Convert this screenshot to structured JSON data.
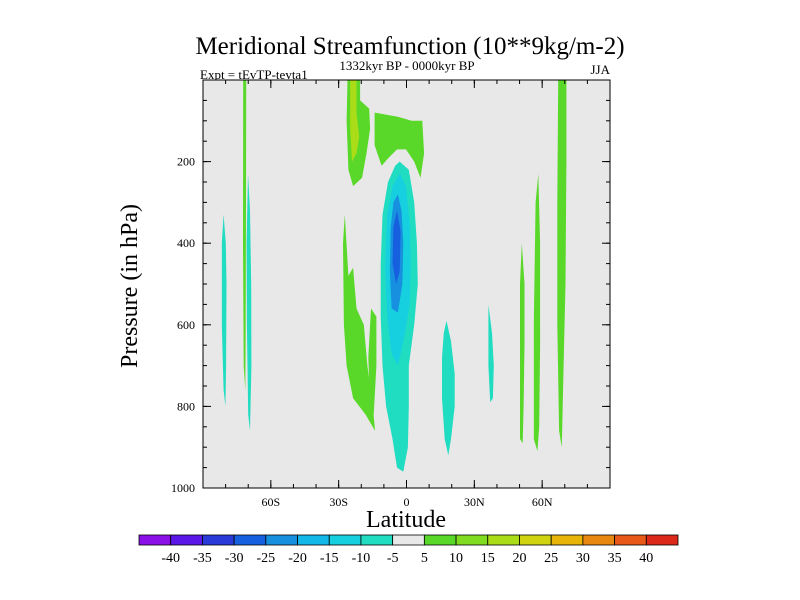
{
  "chart_data": {
    "type": "contour",
    "title": "Meridional Streamfunction (10**9kg/m-2)",
    "subtitle_left": "Expt = tEvTP-tevta1",
    "subtitle_center": "1332kyr BP - 0000kyr BP",
    "subtitle_right": "JJA",
    "xlabel": "Latitude",
    "ylabel": "Pressure (in hPa)",
    "x_range": [
      -90,
      90
    ],
    "y_range": [
      0,
      1000
    ],
    "y_inverted": true,
    "x_ticks": [
      {
        "value": -60,
        "label": "60S"
      },
      {
        "value": -30,
        "label": "30S"
      },
      {
        "value": 0,
        "label": "0"
      },
      {
        "value": 30,
        "label": "30N"
      },
      {
        "value": 60,
        "label": "60N"
      }
    ],
    "y_ticks": [
      {
        "value": 200,
        "label": "200"
      },
      {
        "value": 400,
        "label": "400"
      },
      {
        "value": 600,
        "label": "600"
      },
      {
        "value": 800,
        "label": "800"
      },
      {
        "value": 1000,
        "label": "1000"
      }
    ],
    "background_color": "#e8e8e8",
    "colorbar": {
      "labels": [
        "-40",
        "-35",
        "-30",
        "-25",
        "-20",
        "-15",
        "-10",
        "-5",
        "5",
        "10",
        "15",
        "20",
        "25",
        "30",
        "35",
        "40"
      ],
      "colors": [
        "#8b10e8",
        "#5b17e8",
        "#2a3ad8",
        "#1660e0",
        "#1890e0",
        "#14b8e8",
        "#16d0e0",
        "#20dcc0",
        "#e8e8e8",
        "#5ad82a",
        "#80dc20",
        "#aadc18",
        "#d0d410",
        "#e8b408",
        "#e88810",
        "#e85818",
        "#dc2818"
      ]
    },
    "regions": [
      {
        "color": "#20dcc0",
        "points": [
          [
            -80.9,
            330
          ],
          [
            -79.9,
            400
          ],
          [
            -79.6,
            500
          ],
          [
            -79.8,
            700
          ],
          [
            -80.1,
            800
          ],
          [
            -80.9,
            760
          ],
          [
            -81.7,
            600
          ],
          [
            -81.7,
            400
          ]
        ]
      },
      {
        "color": "#5ad82a",
        "points": [
          [
            -72.2,
            0
          ],
          [
            -70.9,
            0
          ],
          [
            -71,
            300
          ],
          [
            -71.1,
            600
          ],
          [
            -71.3,
            760
          ],
          [
            -72,
            700
          ],
          [
            -72.3,
            400
          ]
        ]
      },
      {
        "color": "#20dcc0",
        "points": [
          [
            -70.1,
            230
          ],
          [
            -69.2,
            320
          ],
          [
            -68.7,
            500
          ],
          [
            -68.6,
            700
          ],
          [
            -69.2,
            860
          ],
          [
            -70,
            820
          ],
          [
            -70.6,
            600
          ],
          [
            -70.7,
            400
          ]
        ]
      },
      {
        "color": "#5ad82a",
        "points": [
          [
            -26.1,
            0
          ],
          [
            -20.5,
            0
          ],
          [
            -20.5,
            50
          ],
          [
            -16.5,
            70
          ],
          [
            -16.1,
            120
          ],
          [
            -17.7,
            180
          ],
          [
            -19.7,
            240
          ],
          [
            -23.6,
            260
          ],
          [
            -25.7,
            220
          ],
          [
            -26.5,
            100
          ]
        ]
      },
      {
        "color": "#aadc18",
        "points": [
          [
            -24.9,
            0
          ],
          [
            -22.1,
            0
          ],
          [
            -22.1,
            80
          ],
          [
            -20.9,
            140
          ],
          [
            -22.1,
            180
          ],
          [
            -24.1,
            200
          ],
          [
            -24.9,
            120
          ]
        ]
      },
      {
        "color": "#5ad82a",
        "points": [
          [
            -14.1,
            80
          ],
          [
            -3.8,
            90
          ],
          [
            2.2,
            100
          ],
          [
            7,
            100
          ],
          [
            7.8,
            180
          ],
          [
            6.2,
            240
          ],
          [
            3.4,
            200
          ],
          [
            -0.2,
            170
          ],
          [
            -4.2,
            170
          ],
          [
            -7.8,
            190
          ],
          [
            -11,
            210
          ],
          [
            -14.1,
            160
          ]
        ]
      },
      {
        "color": "#5ad82a",
        "points": [
          [
            -25.7,
            480
          ],
          [
            -23.6,
            460
          ],
          [
            -22.1,
            560
          ],
          [
            -18.9,
            600
          ],
          [
            -17.3,
            700
          ],
          [
            -14.9,
            800
          ],
          [
            -13.9,
            860
          ],
          [
            -18.1,
            820
          ],
          [
            -23.6,
            780
          ],
          [
            -26.5,
            700
          ],
          [
            -27.7,
            600
          ],
          [
            -28.1,
            400
          ],
          [
            -27.3,
            330
          ]
        ]
      },
      {
        "color": "#5ad82a",
        "points": [
          [
            -15.7,
            560
          ],
          [
            -13.3,
            580
          ],
          [
            -13.3,
            700
          ],
          [
            -14.5,
            820
          ],
          [
            -16.1,
            800
          ],
          [
            -16.9,
            680
          ]
        ]
      },
      {
        "color": "#20dcc0",
        "points": [
          [
            -3,
            200
          ],
          [
            1,
            220
          ],
          [
            3.4,
            300
          ],
          [
            4.6,
            400
          ],
          [
            5,
            500
          ],
          [
            3.4,
            600
          ],
          [
            1,
            700
          ],
          [
            1,
            800
          ],
          [
            0.6,
            900
          ],
          [
            -1.4,
            960
          ],
          [
            -4.2,
            950
          ],
          [
            -6.2,
            880
          ],
          [
            -9,
            800
          ],
          [
            -10.6,
            700
          ],
          [
            -11.4,
            580
          ],
          [
            -11.4,
            450
          ],
          [
            -10.6,
            330
          ],
          [
            -8.2,
            250
          ],
          [
            -5,
            210
          ]
        ]
      },
      {
        "color": "#16d0e0",
        "points": [
          [
            -3,
            230
          ],
          [
            -0.2,
            260
          ],
          [
            1.4,
            350
          ],
          [
            1.8,
            450
          ],
          [
            1.4,
            550
          ],
          [
            -1,
            630
          ],
          [
            -3.8,
            700
          ],
          [
            -6.6,
            670
          ],
          [
            -8.6,
            580
          ],
          [
            -9.4,
            460
          ],
          [
            -8.6,
            330
          ],
          [
            -6.2,
            260
          ]
        ]
      },
      {
        "color": "#1890e0",
        "points": [
          [
            -3.8,
            280
          ],
          [
            -2.2,
            320
          ],
          [
            -1.4,
            400
          ],
          [
            -1.8,
            500
          ],
          [
            -3.8,
            570
          ],
          [
            -6.6,
            560
          ],
          [
            -7.4,
            470
          ],
          [
            -7,
            360
          ],
          [
            -5.8,
            300
          ]
        ]
      },
      {
        "color": "#1660e0",
        "points": [
          [
            -4.2,
            320
          ],
          [
            -2.6,
            370
          ],
          [
            -3,
            470
          ],
          [
            -4.6,
            500
          ],
          [
            -6.2,
            450
          ],
          [
            -5.8,
            360
          ]
        ]
      },
      {
        "color": "#20dcc0",
        "points": [
          [
            17.7,
            590
          ],
          [
            19.7,
            640
          ],
          [
            21.3,
            720
          ],
          [
            21.3,
            800
          ],
          [
            19.7,
            880
          ],
          [
            18.5,
            920
          ],
          [
            16.9,
            880
          ],
          [
            15.7,
            780
          ],
          [
            15.7,
            680
          ],
          [
            16.5,
            620
          ]
        ]
      },
      {
        "color": "#20dcc0",
        "points": [
          [
            36.2,
            550
          ],
          [
            37.8,
            620
          ],
          [
            38.6,
            700
          ],
          [
            38.2,
            780
          ],
          [
            37,
            790
          ],
          [
            36.2,
            700
          ]
        ]
      },
      {
        "color": "#5ad82a",
        "points": [
          [
            51,
            400
          ],
          [
            52.2,
            500
          ],
          [
            52.2,
            650
          ],
          [
            51.8,
            800
          ],
          [
            51.4,
            890
          ],
          [
            50.2,
            880
          ],
          [
            50.2,
            700
          ],
          [
            50.2,
            500
          ]
        ]
      },
      {
        "color": "#5ad82a",
        "points": [
          [
            58.3,
            230
          ],
          [
            59.1,
            400
          ],
          [
            59.1,
            650
          ],
          [
            58.7,
            850
          ],
          [
            57.9,
            910
          ],
          [
            56.3,
            880
          ],
          [
            56.3,
            600
          ],
          [
            57.1,
            300
          ]
        ]
      },
      {
        "color": "#5ad82a",
        "points": [
          [
            67.1,
            0
          ],
          [
            70.7,
            0
          ],
          [
            70.7,
            200
          ],
          [
            70.3,
            500
          ],
          [
            69.5,
            700
          ],
          [
            68.7,
            900
          ],
          [
            67.5,
            860
          ],
          [
            66.7,
            600
          ],
          [
            66.7,
            300
          ]
        ]
      }
    ]
  }
}
